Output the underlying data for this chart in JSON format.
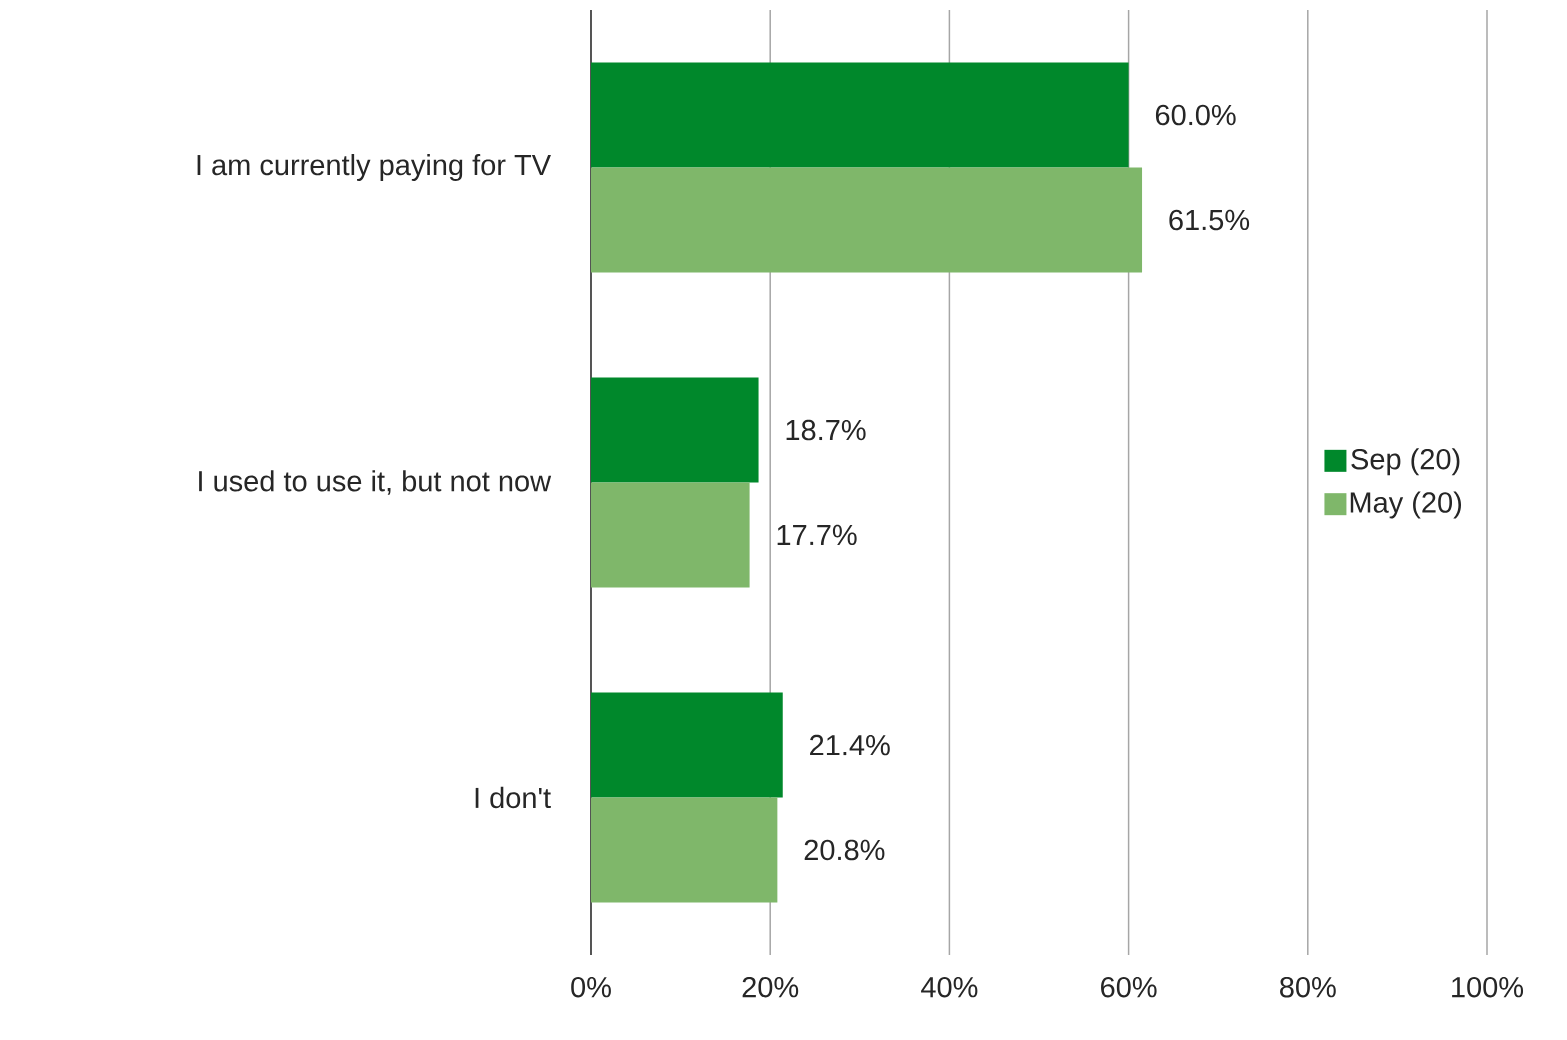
{
  "chart_data": {
    "type": "bar",
    "orientation": "horizontal",
    "categories": [
      "I am currently paying for TV",
      "I used to use it, but not now",
      "I don't"
    ],
    "series": [
      {
        "name": "Sep (20)",
        "color": "#00882b",
        "values": [
          60.0,
          18.7,
          21.4
        ],
        "value_labels": [
          "60.0%",
          "18.7%",
          "21.4%"
        ]
      },
      {
        "name": "May (20)",
        "color": "#7fb76a",
        "values": [
          61.5,
          17.7,
          20.8
        ],
        "value_labels": [
          "61.5%",
          "17.7%",
          "20.8%"
        ]
      }
    ],
    "xlim": [
      0,
      100
    ],
    "xticks": [
      {
        "value": 0,
        "label": "0%"
      },
      {
        "value": 20,
        "label": "20%"
      },
      {
        "value": 40,
        "label": "40%"
      },
      {
        "value": 60,
        "label": "60%"
      },
      {
        "value": 80,
        "label": "80%"
      },
      {
        "value": 100,
        "label": "100%"
      }
    ],
    "grid": "x",
    "legend": "right"
  }
}
